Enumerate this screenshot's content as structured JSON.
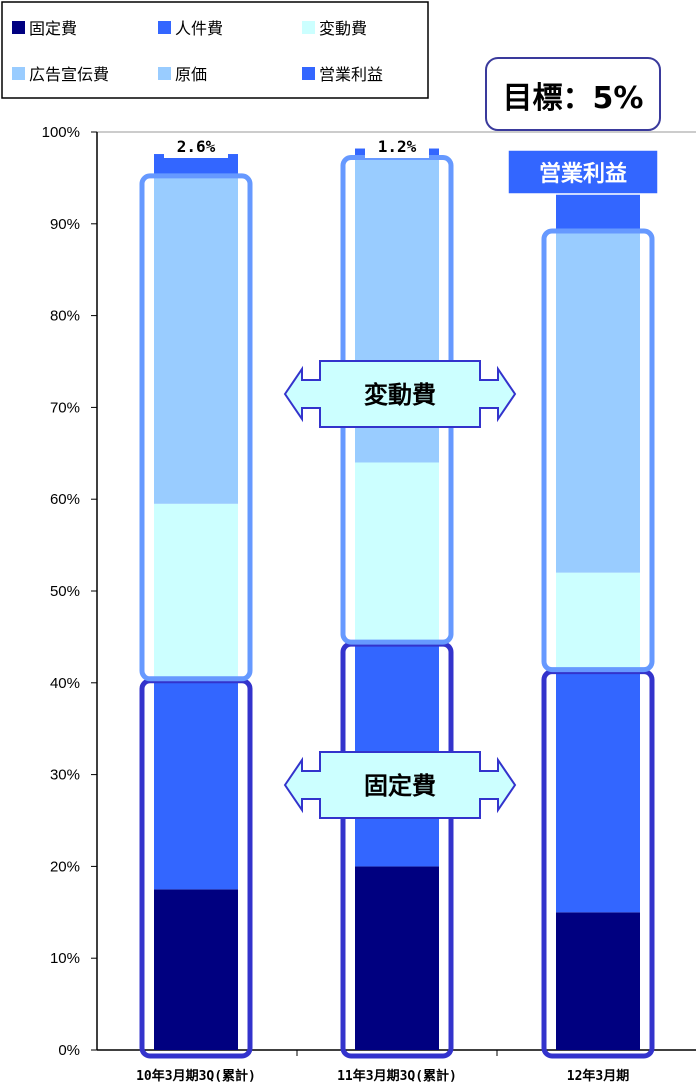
{
  "chart_data": {
    "type": "bar",
    "stacked": true,
    "categories": [
      "10年3月期3Q(累計)",
      "11年3月期3Q(累計)",
      "12年3月期"
    ],
    "series": [
      {
        "name": "固定費",
        "color": "#000080",
        "values": [
          17.5,
          20,
          15
        ]
      },
      {
        "name": "人件費",
        "color": "#3366ff",
        "values": [
          22.5,
          24,
          26
        ]
      },
      {
        "name": "変動費",
        "color": "#ccffff",
        "values": [
          19.5,
          20,
          11
        ]
      },
      {
        "name": "広告宣伝費",
        "color": "#99ccff",
        "values": [
          0,
          0,
          0
        ]
      },
      {
        "name": "原価",
        "color": "#99ccff",
        "values": [
          35.5,
          33,
          37
        ]
      },
      {
        "name": "営業利益",
        "color": "#3366ff",
        "values": [
          2.6,
          1.2,
          5
        ]
      }
    ],
    "ylim": [
      0,
      100
    ],
    "yticks": [
      "0%",
      "10%",
      "20%",
      "30%",
      "40%",
      "50%",
      "60%",
      "70%",
      "80%",
      "90%",
      "100%"
    ],
    "legend_position": "top-left",
    "grid": false,
    "annotations": {
      "profit_labels": [
        "2.6%",
        "1.2%",
        ""
      ],
      "target": "目標：5%",
      "profit_callout": "営業利益",
      "variable_cost_callout": "変動費",
      "fixed_cost_callout": "固定費"
    }
  }
}
